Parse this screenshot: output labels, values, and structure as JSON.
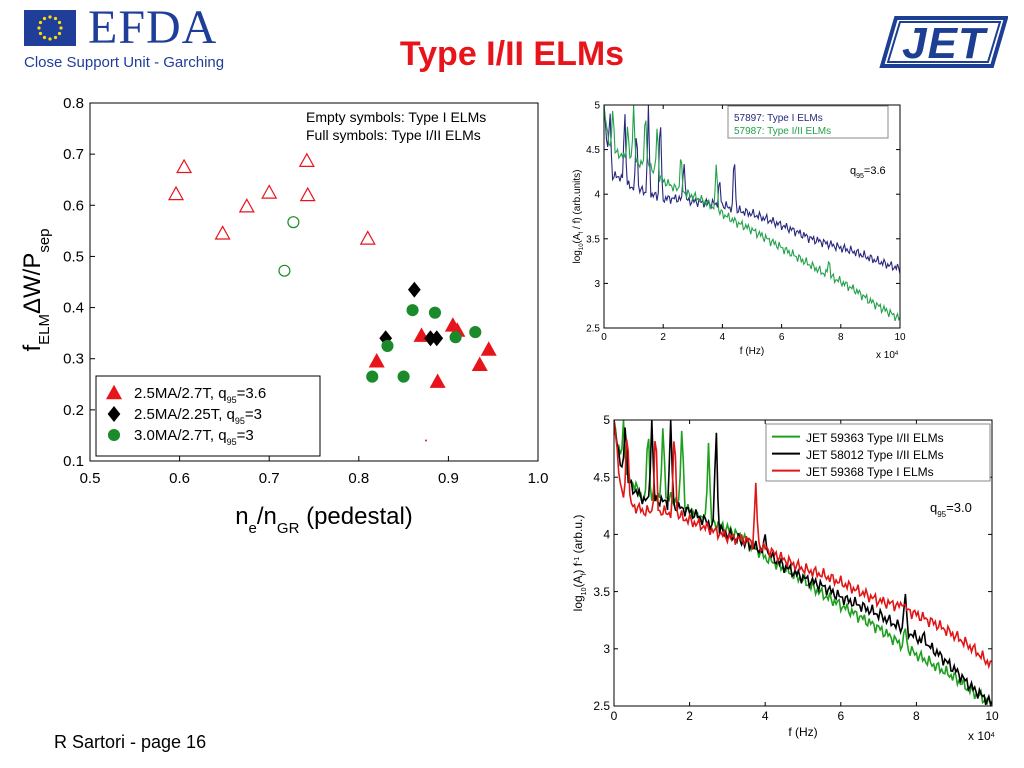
{
  "header": {
    "title": "Type I/II ELMs",
    "efda_name": "EFDA",
    "efda_subtitle": "Close Support Unit - Garching",
    "jet_logo": "JET"
  },
  "footer": {
    "text": "R Sartori  - page 16"
  },
  "colors": {
    "title": "#e8141b",
    "efda_blue": "#1f3e99",
    "jet_blue": "#1c3f94"
  },
  "chart_data": [
    {
      "id": "main",
      "type": "scatter",
      "xlabel": "n_e/n_GR (pedestal)",
      "ylabel": "f_ELM ΔW/P_sep",
      "xlim": [
        0.5,
        1.0
      ],
      "ylim": [
        0.1,
        0.8
      ],
      "xticks": [
        "0.5",
        "0.6",
        "0.7",
        "0.8",
        "0.9",
        "1.0"
      ],
      "yticks": [
        "0.1",
        "0.2",
        "0.3",
        "0.4",
        "0.5",
        "0.6",
        "0.7",
        "0.8"
      ],
      "annotation_lines": [
        "Empty symbols: Type I ELMs",
        "Full symbols:      Type I/II ELMs"
      ],
      "legend_position": "bottom-left",
      "series": [
        {
          "name": "2.5MA/2.7T,   q95=3.6",
          "marker": "triangle",
          "color": "#e8141b",
          "open_points": [
            [
              0.596,
              0.622
            ],
            [
              0.605,
              0.675
            ],
            [
              0.648,
              0.545
            ],
            [
              0.675,
              0.598
            ],
            [
              0.7,
              0.625
            ],
            [
              0.742,
              0.687
            ],
            [
              0.743,
              0.62
            ],
            [
              0.81,
              0.535
            ]
          ],
          "filled_points": [
            [
              0.82,
              0.295
            ],
            [
              0.87,
              0.345
            ],
            [
              0.888,
              0.255
            ],
            [
              0.905,
              0.365
            ],
            [
              0.91,
              0.355
            ],
            [
              0.935,
              0.288
            ],
            [
              0.945,
              0.318
            ]
          ]
        },
        {
          "name": "2.5MA/2.25T, q95=3",
          "marker": "diamond",
          "color": "#000000",
          "open_points": [],
          "filled_points": [
            [
              0.83,
              0.34
            ],
            [
              0.862,
              0.435
            ],
            [
              0.88,
              0.34
            ],
            [
              0.887,
              0.34
            ]
          ]
        },
        {
          "name": "3.0MA/2.7T,   q95=3",
          "marker": "circle",
          "color": "#1b8a2a",
          "open_points": [
            [
              0.727,
              0.567
            ],
            [
              0.717,
              0.472
            ]
          ],
          "filled_points": [
            [
              0.815,
              0.265
            ],
            [
              0.832,
              0.325
            ],
            [
              0.85,
              0.265
            ],
            [
              0.86,
              0.395
            ],
            [
              0.885,
              0.39
            ],
            [
              0.908,
              0.342
            ],
            [
              0.93,
              0.352
            ]
          ]
        }
      ]
    },
    {
      "id": "spectrum-top",
      "type": "line",
      "xlabel": "f (Hz)",
      "x_multiplier": "x 10^4",
      "ylabel": "log10(A_f / f) (arb.units)",
      "xlim": [
        0,
        10
      ],
      "ylim": [
        2.5,
        5
      ],
      "xticks": [
        "0",
        "2",
        "4",
        "6",
        "8",
        "10"
      ],
      "yticks": [
        "2.5",
        "3",
        "3.5",
        "4",
        "4.5",
        "5"
      ],
      "annotation": "q95=3.6",
      "legend_position": "top-right",
      "series": [
        {
          "name": "57897: Type I    ELMs",
          "color": "#27277d",
          "points": [
            [
              0,
              5.0
            ],
            [
              0.2,
              4.2
            ],
            [
              0.5,
              4.2
            ],
            [
              0.8,
              4.1
            ],
            [
              1.2,
              4.05
            ],
            [
              1.6,
              4.0
            ],
            [
              2.0,
              3.95
            ],
            [
              2.5,
              3.95
            ],
            [
              3.0,
              3.92
            ],
            [
              3.5,
              3.9
            ],
            [
              4.0,
              3.88
            ],
            [
              4.5,
              3.82
            ],
            [
              5.0,
              3.78
            ],
            [
              5.5,
              3.72
            ],
            [
              6.0,
              3.65
            ],
            [
              6.5,
              3.58
            ],
            [
              7.0,
              3.5
            ],
            [
              7.5,
              3.45
            ],
            [
              8.0,
              3.4
            ],
            [
              8.5,
              3.35
            ],
            [
              9.0,
              3.28
            ],
            [
              9.5,
              3.22
            ],
            [
              10.0,
              3.16
            ]
          ],
          "peaks": [
            [
              0.2,
              5.0
            ],
            [
              0.7,
              5.0
            ],
            [
              1.1,
              4.8
            ],
            [
              1.5,
              5.0
            ],
            [
              1.9,
              5.0
            ],
            [
              2.7,
              4.4
            ],
            [
              3.9,
              4.2
            ],
            [
              4.4,
              4.5
            ]
          ]
        },
        {
          "name": "57987: Type I/II ELMs",
          "color": "#22a04a",
          "points": [
            [
              0,
              5.0
            ],
            [
              0.2,
              4.5
            ],
            [
              0.5,
              4.45
            ],
            [
              0.8,
              4.4
            ],
            [
              1.2,
              4.35
            ],
            [
              1.6,
              4.3
            ],
            [
              2.0,
              4.15
            ],
            [
              2.5,
              4.05
            ],
            [
              3.0,
              3.98
            ],
            [
              3.5,
              3.9
            ],
            [
              4.0,
              3.78
            ],
            [
              4.5,
              3.68
            ],
            [
              5.0,
              3.6
            ],
            [
              5.5,
              3.5
            ],
            [
              6.0,
              3.4
            ],
            [
              6.5,
              3.3
            ],
            [
              7.0,
              3.2
            ],
            [
              7.5,
              3.1
            ],
            [
              8.0,
              3.02
            ],
            [
              8.5,
              2.92
            ],
            [
              9.0,
              2.8
            ],
            [
              9.5,
              2.7
            ],
            [
              10.0,
              2.6
            ]
          ],
          "peaks": [
            [
              0.3,
              5.0
            ],
            [
              0.8,
              4.8
            ],
            [
              1.0,
              5.0
            ],
            [
              1.4,
              5.0
            ],
            [
              1.8,
              4.8
            ],
            [
              2.6,
              4.5
            ],
            [
              3.8,
              4.4
            ],
            [
              7.6,
              3.3
            ]
          ]
        }
      ]
    },
    {
      "id": "spectrum-bottom",
      "type": "line",
      "xlabel": "f (Hz)",
      "x_multiplier": "x 10^4",
      "ylabel": "log10(A_f) f^-1 (arb.u.)",
      "xlim": [
        0,
        10
      ],
      "ylim": [
        2.5,
        5
      ],
      "xticks": [
        "0",
        "2",
        "4",
        "6",
        "8",
        "10"
      ],
      "yticks": [
        "2.5",
        "3",
        "3.5",
        "4",
        "4.5",
        "5"
      ],
      "annotation": "q95=3.0",
      "legend_position": "top-right",
      "series": [
        {
          "name": "JET 59363  Type I/II ELMs",
          "color": "#1ea01e",
          "points": [
            [
              0,
              5.0
            ],
            [
              0.2,
              4.6
            ],
            [
              0.5,
              4.45
            ],
            [
              0.8,
              4.3
            ],
            [
              1.2,
              4.35
            ],
            [
              1.6,
              4.3
            ],
            [
              2.0,
              4.2
            ],
            [
              2.5,
              4.12
            ],
            [
              3.0,
              4.05
            ],
            [
              3.5,
              3.95
            ],
            [
              4.0,
              3.8
            ],
            [
              4.5,
              3.7
            ],
            [
              5.0,
              3.6
            ],
            [
              5.5,
              3.48
            ],
            [
              6.0,
              3.38
            ],
            [
              6.5,
              3.28
            ],
            [
              7.0,
              3.18
            ],
            [
              7.5,
              3.06
            ],
            [
              8.0,
              2.95
            ],
            [
              8.5,
              2.85
            ],
            [
              9.0,
              2.75
            ],
            [
              9.5,
              2.62
            ],
            [
              10.0,
              2.52
            ]
          ],
          "peaks": [
            [
              0.25,
              5.0
            ],
            [
              0.9,
              5.0
            ],
            [
              1.3,
              5.0
            ],
            [
              1.8,
              5.0
            ],
            [
              2.5,
              4.8
            ],
            [
              7.7,
              3.2
            ]
          ]
        },
        {
          "name": "JET 58012  Type I/II ELMs",
          "color": "#000000",
          "points": [
            [
              0,
              5.0
            ],
            [
              0.2,
              4.55
            ],
            [
              0.5,
              4.4
            ],
            [
              0.8,
              4.3
            ],
            [
              1.2,
              4.3
            ],
            [
              1.6,
              4.25
            ],
            [
              2.0,
              4.2
            ],
            [
              2.5,
              4.1
            ],
            [
              3.0,
              4.0
            ],
            [
              3.5,
              3.92
            ],
            [
              4.0,
              3.85
            ],
            [
              4.5,
              3.72
            ],
            [
              5.0,
              3.62
            ],
            [
              5.5,
              3.55
            ],
            [
              6.0,
              3.45
            ],
            [
              6.5,
              3.38
            ],
            [
              7.0,
              3.3
            ],
            [
              7.5,
              3.2
            ],
            [
              8.0,
              3.1
            ],
            [
              8.5,
              2.98
            ],
            [
              9.0,
              2.82
            ],
            [
              9.5,
              2.65
            ],
            [
              10.0,
              2.52
            ]
          ],
          "peaks": [
            [
              0.3,
              5.0
            ],
            [
              1.0,
              5.0
            ],
            [
              1.5,
              5.0
            ],
            [
              2.7,
              5.0
            ],
            [
              4.0,
              4.0
            ],
            [
              7.7,
              3.52
            ],
            [
              8.2,
              3.15
            ]
          ]
        },
        {
          "name": "JET 59368  Type I    ELMs",
          "color": "#e01616",
          "points": [
            [
              0,
              5.0
            ],
            [
              0.2,
              4.35
            ],
            [
              0.5,
              4.25
            ],
            [
              0.8,
              4.2
            ],
            [
              1.2,
              4.2
            ],
            [
              1.6,
              4.18
            ],
            [
              2.0,
              4.12
            ],
            [
              2.5,
              4.05
            ],
            [
              3.0,
              3.98
            ],
            [
              3.5,
              3.95
            ],
            [
              4.0,
              3.88
            ],
            [
              4.5,
              3.78
            ],
            [
              5.0,
              3.7
            ],
            [
              5.5,
              3.65
            ],
            [
              6.0,
              3.58
            ],
            [
              6.5,
              3.5
            ],
            [
              7.0,
              3.42
            ],
            [
              7.5,
              3.38
            ],
            [
              8.0,
              3.3
            ],
            [
              8.5,
              3.22
            ],
            [
              9.0,
              3.12
            ],
            [
              9.5,
              3.0
            ],
            [
              10.0,
              2.85
            ]
          ],
          "peaks": [
            [
              0.35,
              5.0
            ],
            [
              1.1,
              5.0
            ],
            [
              1.6,
              5.0
            ],
            [
              3.75,
              4.45
            ],
            [
              7.65,
              3.4
            ]
          ]
        }
      ]
    }
  ]
}
